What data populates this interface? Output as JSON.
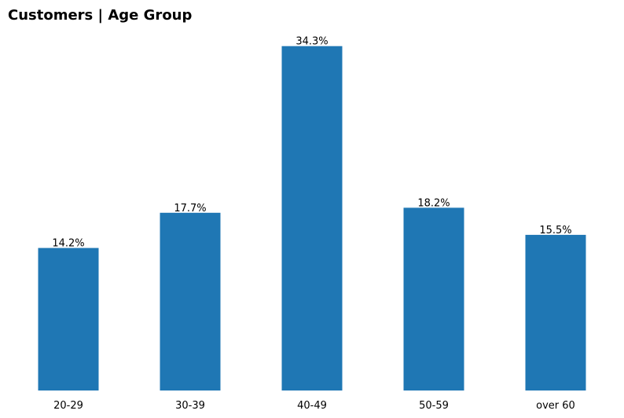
{
  "chart_data": {
    "type": "bar",
    "title": "Customers | Age Group",
    "xlabel": "",
    "ylabel": "",
    "categories": [
      "20-29",
      "30-39",
      "40-49",
      "50-59",
      "over 60"
    ],
    "values": [
      14.2,
      17.7,
      34.3,
      18.2,
      15.5
    ],
    "data_labels": [
      "14.2%",
      "17.7%",
      "34.3%",
      "18.2%",
      "15.5%"
    ],
    "unit": "%",
    "ylim": [
      0,
      36
    ],
    "grid": false,
    "legend": "none",
    "bar_color": "#1f77b4"
  }
}
